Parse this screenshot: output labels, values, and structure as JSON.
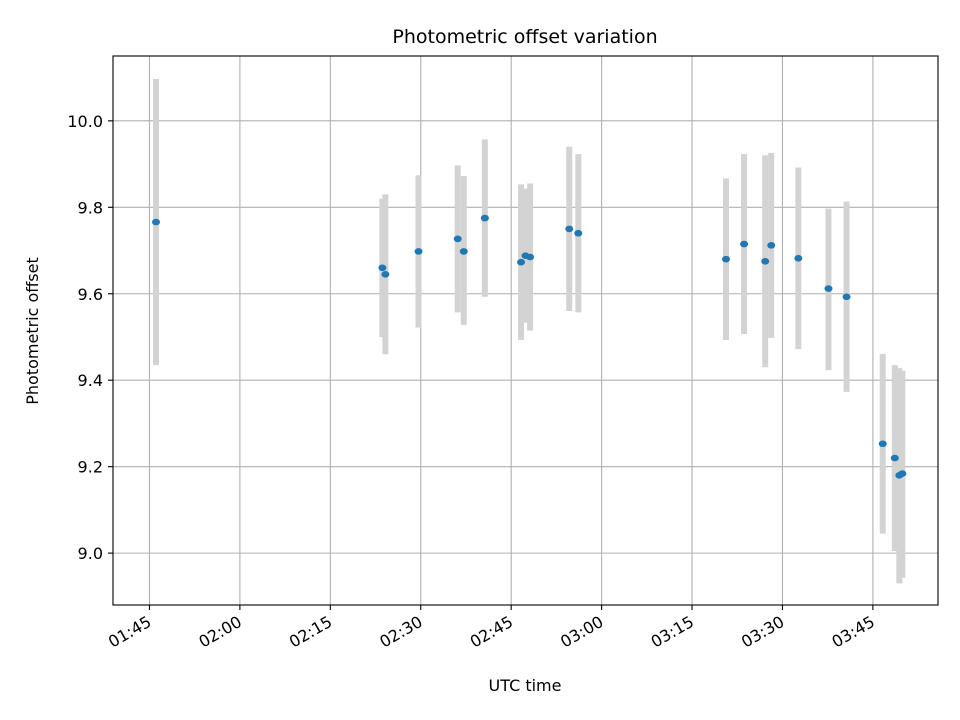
{
  "chart_data": {
    "type": "scatter",
    "title": "Photometric offset variation",
    "xlabel": "UTC time",
    "ylabel": "Photometric offset",
    "x_tick_labels": [
      "01:45",
      "02:00",
      "02:15",
      "02:30",
      "02:45",
      "03:00",
      "03:15",
      "03:30",
      "03:45"
    ],
    "y_tick_values": [
      9.0,
      9.2,
      9.4,
      9.6,
      9.8,
      10.0
    ],
    "y_tick_labels": [
      "9.0",
      "9.2",
      "9.4",
      "9.6",
      "9.8",
      "10.0"
    ],
    "xlim": [
      "01:38:57",
      "03:55:48"
    ],
    "ylim": [
      8.88,
      10.15
    ],
    "grid": true,
    "point_color": "#1f77b4",
    "errorbar_color": "#d3d3d3",
    "points": [
      {
        "x": "01:46:05",
        "y": 9.766,
        "ylow": 9.435,
        "yhigh": 10.097
      },
      {
        "x": "02:23:38",
        "y": 9.66,
        "ylow": 9.5,
        "yhigh": 9.82
      },
      {
        "x": "02:24:08",
        "y": 9.645,
        "ylow": 9.46,
        "yhigh": 9.83
      },
      {
        "x": "02:29:38",
        "y": 9.698,
        "ylow": 9.522,
        "yhigh": 9.874
      },
      {
        "x": "02:36:08",
        "y": 9.727,
        "ylow": 9.557,
        "yhigh": 9.897
      },
      {
        "x": "02:37:08",
        "y": 9.698,
        "ylow": 9.528,
        "yhigh": 9.872
      },
      {
        "x": "02:40:38",
        "y": 9.775,
        "ylow": 9.593,
        "yhigh": 9.957
      },
      {
        "x": "02:46:38",
        "y": 9.673,
        "ylow": 9.493,
        "yhigh": 9.853
      },
      {
        "x": "02:47:23",
        "y": 9.688,
        "ylow": 9.533,
        "yhigh": 9.843
      },
      {
        "x": "02:48:08",
        "y": 9.685,
        "ylow": 9.515,
        "yhigh": 9.855
      },
      {
        "x": "02:54:38",
        "y": 9.75,
        "ylow": 9.56,
        "yhigh": 9.94
      },
      {
        "x": "02:56:08",
        "y": 9.74,
        "ylow": 9.557,
        "yhigh": 9.923
      },
      {
        "x": "03:20:38",
        "y": 9.68,
        "ylow": 9.493,
        "yhigh": 9.867
      },
      {
        "x": "03:23:38",
        "y": 9.715,
        "ylow": 9.507,
        "yhigh": 9.923
      },
      {
        "x": "03:27:08",
        "y": 9.675,
        "ylow": 9.43,
        "yhigh": 9.92
      },
      {
        "x": "03:28:08",
        "y": 9.712,
        "ylow": 9.498,
        "yhigh": 9.926
      },
      {
        "x": "03:32:38",
        "y": 9.682,
        "ylow": 9.472,
        "yhigh": 9.892
      },
      {
        "x": "03:37:38",
        "y": 9.612,
        "ylow": 9.423,
        "yhigh": 9.797
      },
      {
        "x": "03:40:38",
        "y": 9.593,
        "ylow": 9.373,
        "yhigh": 9.813
      },
      {
        "x": "03:46:38",
        "y": 9.253,
        "ylow": 9.045,
        "yhigh": 9.461
      },
      {
        "x": "03:48:38",
        "y": 9.22,
        "ylow": 9.005,
        "yhigh": 9.435
      },
      {
        "x": "03:49:23",
        "y": 9.18,
        "ylow": 8.93,
        "yhigh": 9.428
      },
      {
        "x": "03:49:53",
        "y": 9.184,
        "ylow": 8.943,
        "yhigh": 9.422
      }
    ]
  }
}
